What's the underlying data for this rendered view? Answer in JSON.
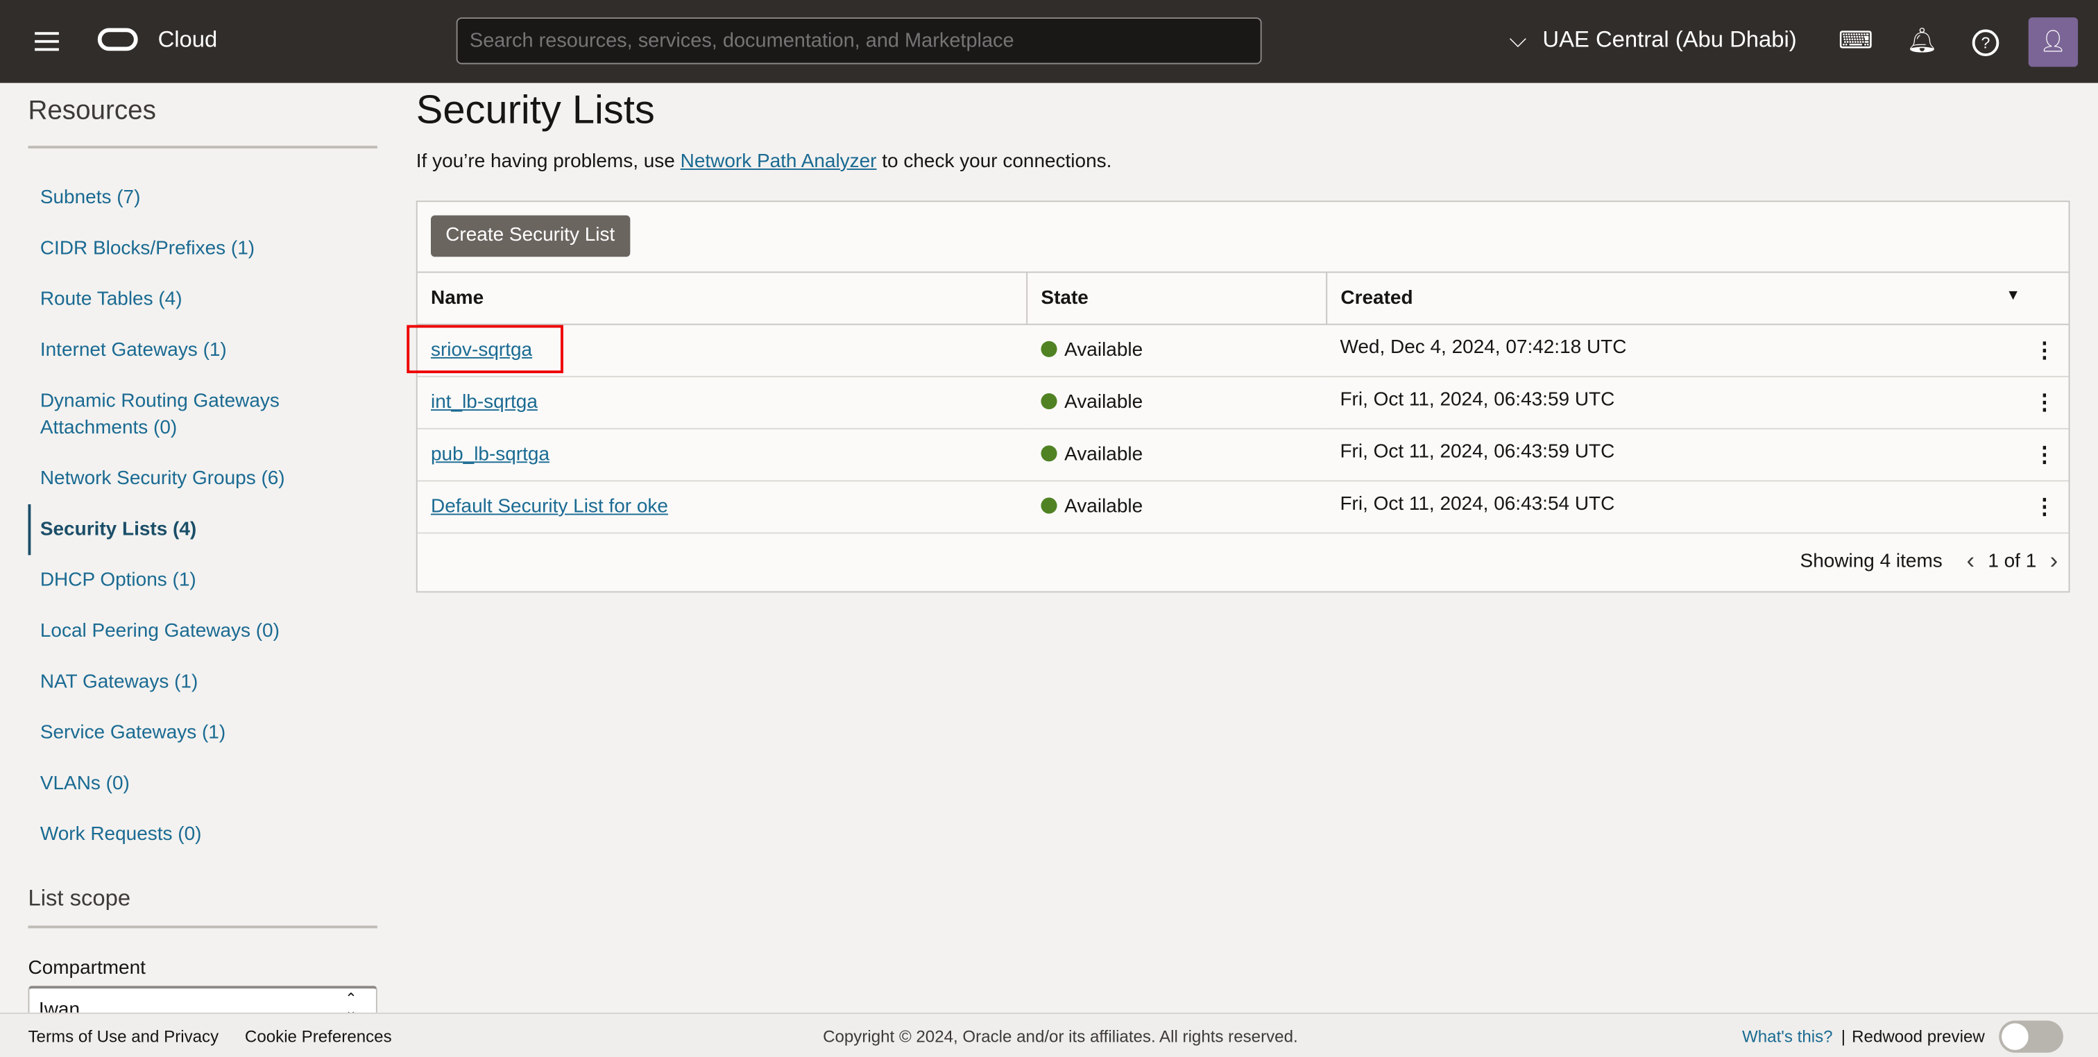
{
  "header": {
    "brand": "Cloud",
    "search_placeholder": "Search resources, services, documentation, and Marketplace",
    "region": "UAE Central (Abu Dhabi)"
  },
  "sidebar": {
    "title": "Resources",
    "items": [
      {
        "label": "Subnets (7)"
      },
      {
        "label": "CIDR Blocks/Prefixes (1)"
      },
      {
        "label": "Route Tables (4)"
      },
      {
        "label": "Internet Gateways (1)"
      },
      {
        "label": "Dynamic Routing Gateways Attachments (0)"
      },
      {
        "label": "Network Security Groups (6)"
      },
      {
        "label": "Security Lists (4)",
        "active": true
      },
      {
        "label": "DHCP Options (1)"
      },
      {
        "label": "Local Peering Gateways (0)"
      },
      {
        "label": "NAT Gateways (1)"
      },
      {
        "label": "Service Gateways (1)"
      },
      {
        "label": "VLANs (0)"
      },
      {
        "label": "Work Requests (0)"
      }
    ],
    "scope_title": "List scope",
    "compartment_label": "Compartment",
    "compartment_value": "Iwan"
  },
  "main": {
    "title": "Security Lists",
    "hint_pre": "If you’re having problems, use ",
    "hint_link": "Network Path Analyzer",
    "hint_post": " to check your connections.",
    "create_button": "Create Security List",
    "columns": [
      "Name",
      "State",
      "Created"
    ],
    "rows": [
      {
        "name": "sriov-sqrtga",
        "state": "Available",
        "created": "Wed, Dec 4, 2024, 07:42:18 UTC"
      },
      {
        "name": "int_lb-sqrtga",
        "state": "Available",
        "created": "Fri, Oct 11, 2024, 06:43:59 UTC"
      },
      {
        "name": "pub_lb-sqrtga",
        "state": "Available",
        "created": "Fri, Oct 11, 2024, 06:43:59 UTC"
      },
      {
        "name": "Default Security List for oke",
        "state": "Available",
        "created": "Fri, Oct 11, 2024, 06:43:54 UTC"
      }
    ],
    "showing": "Showing 4 items",
    "page": "1 of 1"
  },
  "footer": {
    "terms": "Terms of Use and Privacy",
    "cookies": "Cookie Preferences",
    "copyright": "Copyright © 2024, Oracle and/or its affiliates. All rights reserved.",
    "whats_this": "What's this?",
    "redwood": "Redwood preview"
  },
  "colors": {
    "topbar": "#312d2a",
    "link": "#1a6a92",
    "available": "#508223",
    "highlight": "#e00000"
  }
}
